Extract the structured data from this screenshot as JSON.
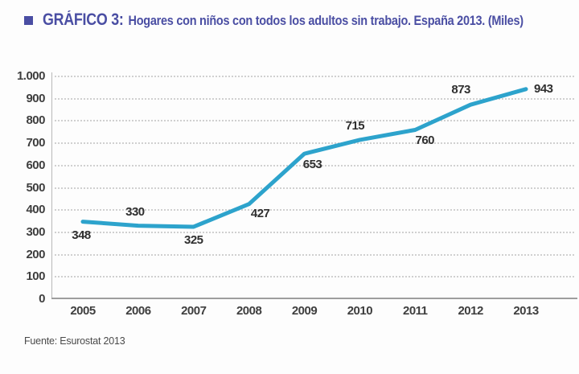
{
  "header": {
    "title_prefix": "GRÁFICO 3:",
    "title_rest": "Hogares con niños con todos los adultos sin trabajo. España 2013. (Miles)"
  },
  "colors": {
    "title": "#4a4ea3",
    "line": "#2da3cc",
    "axis_text": "#3e3e3e",
    "gridline": "#c9c9c9",
    "axis_line": "#9e9e9e"
  },
  "chart_data": {
    "type": "line",
    "title": "GRÁFICO 3: Hogares con niños con todos los adultos sin trabajo. España 2013. (Miles)",
    "categories": [
      "2005",
      "2006",
      "2007",
      "2008",
      "2009",
      "2010",
      "2011",
      "2012",
      "2013"
    ],
    "series": [
      {
        "name": "Hogares con niños con todos los adultos sin trabajo (miles)",
        "values": [
          348,
          330,
          325,
          427,
          653,
          715,
          760,
          873,
          943
        ]
      }
    ],
    "data_labels": [
      "348",
      "330",
      "325",
      "427",
      "653",
      "715",
      "760",
      "873",
      "943"
    ],
    "ylim": [
      0,
      1000
    ],
    "yticks": [
      {
        "value": 0,
        "label": "0"
      },
      {
        "value": 100,
        "label": "100"
      },
      {
        "value": 200,
        "label": "200"
      },
      {
        "value": 300,
        "label": "300"
      },
      {
        "value": 400,
        "label": "400"
      },
      {
        "value": 500,
        "label": "500"
      },
      {
        "value": 600,
        "label": "600"
      },
      {
        "value": 700,
        "label": "700"
      },
      {
        "value": 800,
        "label": "800"
      },
      {
        "value": 900,
        "label": "900"
      },
      {
        "value": 1000,
        "label": "1.000"
      }
    ],
    "grid": "horizontal-dotted",
    "legend": "none",
    "line_color": "#2da3cc"
  },
  "footer": {
    "source": "Fuente: Esurostat 2013"
  }
}
